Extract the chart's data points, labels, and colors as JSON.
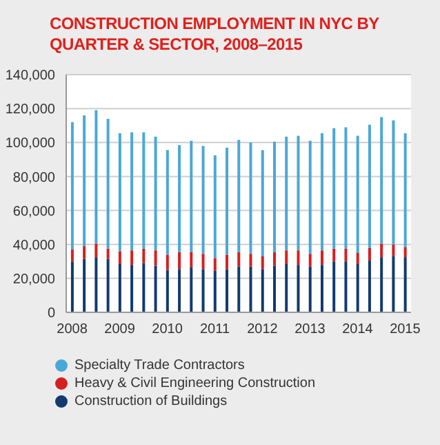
{
  "chart_data": {
    "type": "bar",
    "title": "CONSTRUCTION EMPLOYMENT IN NYC BY QUARTER & SECTOR, 2008–2015",
    "categories": [
      "2008",
      null,
      null,
      null,
      "2009",
      null,
      null,
      null,
      "2010",
      null,
      null,
      null,
      "2011",
      null,
      null,
      null,
      "2012",
      null,
      null,
      null,
      "2013",
      null,
      null,
      null,
      "2014",
      null,
      null,
      null,
      "2015"
    ],
    "stacked": true,
    "series": [
      {
        "name": "Construction of Buildings",
        "color": "#123a6e",
        "values": [
          30000,
          31500,
          32500,
          31500,
          28500,
          28000,
          29000,
          27500,
          25000,
          25500,
          26500,
          25500,
          24500,
          25500,
          27000,
          27000,
          25500,
          27500,
          28500,
          28000,
          27000,
          28000,
          30000,
          30000,
          28500,
          30500,
          32500,
          33000,
          32500
        ]
      },
      {
        "name": "Heavy & Civil Engineering Construction",
        "color": "#d42020",
        "values": [
          7000,
          7500,
          8000,
          6000,
          7500,
          8500,
          8500,
          9000,
          9000,
          10000,
          9000,
          9000,
          7500,
          8500,
          8500,
          7500,
          7500,
          8000,
          8000,
          8500,
          7500,
          8500,
          7500,
          7500,
          6500,
          7500,
          8000,
          7000,
          6000
        ]
      },
      {
        "name": "Specialty Trade Contractors",
        "color": "#4aa8d8",
        "values": [
          75000,
          77000,
          78500,
          76500,
          69500,
          69500,
          68500,
          67000,
          61500,
          63000,
          65500,
          63500,
          60500,
          63000,
          66000,
          65500,
          62500,
          65000,
          67000,
          67500,
          66500,
          69000,
          71000,
          71500,
          69000,
          72500,
          74500,
          73000,
          67000
        ]
      }
    ],
    "ylim": [
      0,
      140000
    ],
    "yticks": [
      0,
      {
        "value": 20000,
        "label": "20,000"
      },
      {
        "value": 40000,
        "label": "40,000"
      },
      {
        "value": 60000,
        "label": "60,000"
      },
      {
        "value": 80000,
        "label": "80,000"
      },
      {
        "value": 100000,
        "label": "100,000"
      },
      {
        "value": 120000,
        "label": "120,000"
      },
      {
        "value": 140000,
        "label": "140,000"
      }
    ],
    "grid": "y",
    "legend": "bottom"
  }
}
